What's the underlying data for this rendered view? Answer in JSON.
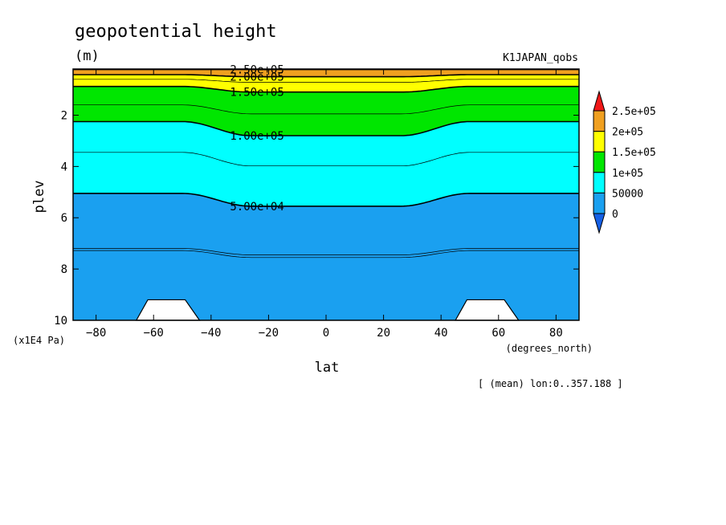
{
  "chart_data": {
    "type": "contour",
    "title": "geopotential height",
    "units": "(m)",
    "run_name": "K1JAPAN_qobs",
    "xlabel": "lat",
    "x_units": "(degrees_north)",
    "ylabel": "plev",
    "y_units": "(x1E4 Pa)",
    "subset_note": "[ (mean) lon:0..357.188 ]",
    "xlim": [
      -88,
      88
    ],
    "ylim": [
      10,
      0.2
    ],
    "x_ticks": [
      -80,
      -60,
      -40,
      -20,
      0,
      20,
      40,
      60,
      80
    ],
    "y_ticks": [
      2,
      4,
      6,
      8,
      10
    ],
    "levels": [
      0,
      50000,
      100000,
      150000,
      200000,
      250000
    ],
    "colorbar_labels": [
      "2.5e+05",
      "2e+05",
      "1.5e+05",
      "1e+05",
      "50000",
      "0"
    ],
    "contour_labels": [
      "2.50e+05",
      "2.00e+05",
      "1.50e+05",
      "1.00e+05",
      "5.00e+04"
    ],
    "colors": {
      "below_0": "#1560e6",
      "0-50000": "#1aa0f0",
      "50000-100000": "#00ffff",
      "100000-150000": "#00e600",
      "150000-200000": "#ffff00",
      "200000-250000": "#f0a020",
      "above_250000": "#f01818",
      "terrain": "#ffffff"
    },
    "boundaries": [
      {
        "value": 250000,
        "plev_polar": 0.22,
        "plev_equator": 0.22
      },
      {
        "value": 200000,
        "plev_polar": 0.42,
        "plev_equator": 0.5
      },
      {
        "value": 150000,
        "plev_polar": 0.88,
        "plev_equator": 1.1
      },
      {
        "value": 100000,
        "plev_polar": 2.25,
        "plev_equator": 2.8
      },
      {
        "value": 50000,
        "plev_polar": 5.05,
        "plev_equator": 5.55
      }
    ],
    "extra_contours": [
      {
        "plev_polar": 0.6,
        "plev_equator": 0.72
      },
      {
        "plev_polar": 1.6,
        "plev_equator": 1.95
      },
      {
        "plev_polar": 3.45,
        "plev_equator": 3.98
      },
      {
        "plev_polar": 7.2,
        "plev_equator": 7.45
      },
      {
        "plev_polar": 7.28,
        "plev_equator": 7.55
      }
    ],
    "terrain_blocks": [
      {
        "lat_bottom": [
          -66,
          -44
        ],
        "lat_top": [
          -62,
          -49
        ],
        "plev_top": 9.2
      },
      {
        "lat_bottom": [
          45,
          67
        ],
        "lat_top": [
          49,
          62
        ],
        "plev_top": 9.2
      }
    ]
  }
}
